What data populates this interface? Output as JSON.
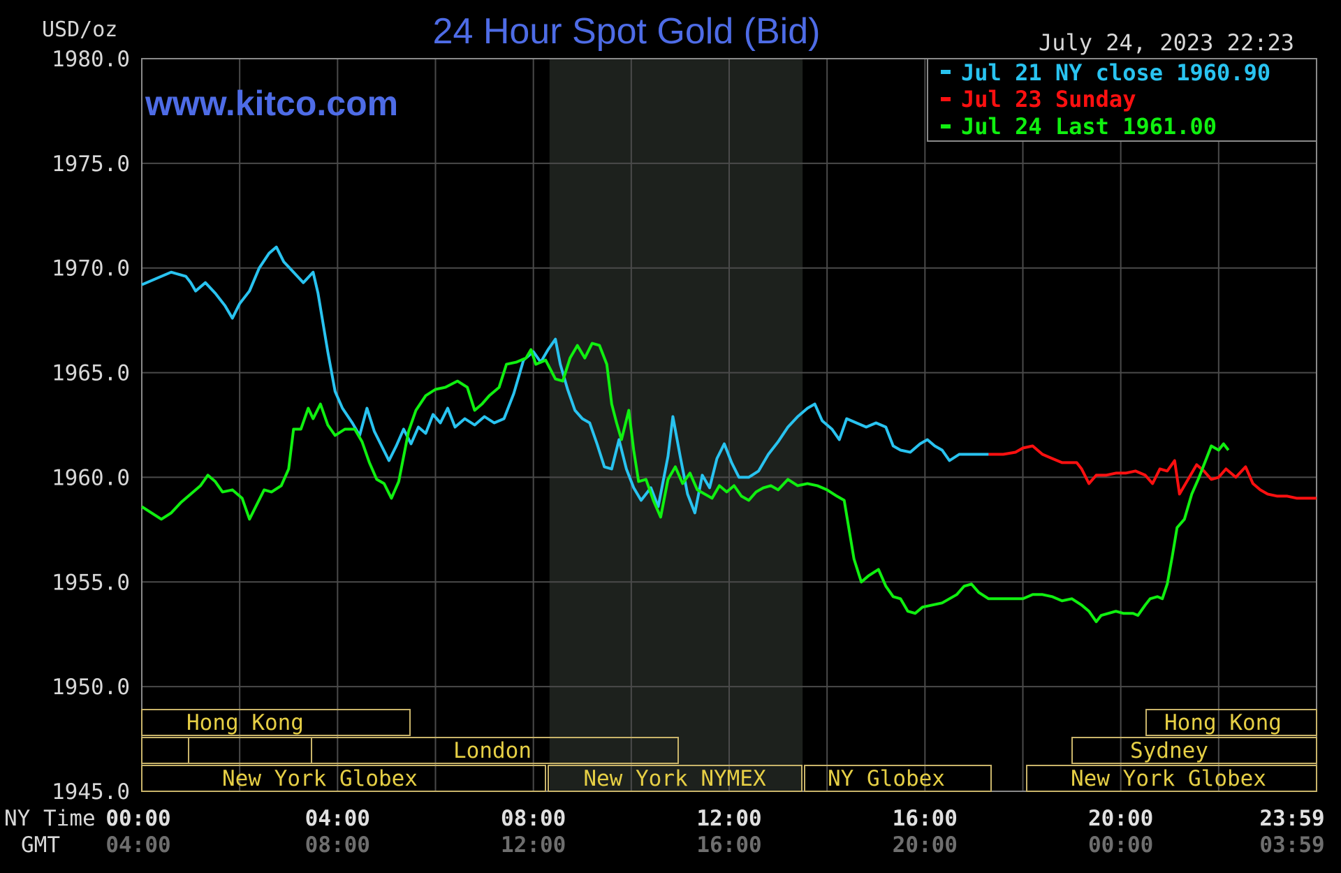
{
  "title": "24 Hour Spot Gold (Bid)",
  "units": "USD/oz",
  "timestamp": "July 24, 2023 22:23",
  "watermark": "www.kitco.com",
  "legend": [
    {
      "label": "Jul 21 NY close 1960.90",
      "color": "#29c3f0"
    },
    {
      "label": "Jul 23 Sunday",
      "color": "#ff1010"
    },
    {
      "label": "Jul 24 Last 1961.00",
      "color": "#10f010"
    }
  ],
  "x_axis": {
    "row1_label": "NY Time",
    "row2_label": "GMT",
    "ny_ticks": [
      "00:00",
      "04:00",
      "08:00",
      "12:00",
      "16:00",
      "20:00",
      "23:59"
    ],
    "gmt_ticks": [
      "04:00",
      "08:00",
      "12:00",
      "16:00",
      "20:00",
      "00:00",
      "03:59"
    ]
  },
  "sessions": {
    "hong_kong_1": "Hong Kong",
    "london": "London",
    "ny_globex_1": "New York Globex",
    "ny_nymex": "New York NYMEX",
    "ny_globex_2": "NY Globex",
    "hong_kong_2": "Hong Kong",
    "sydney": "Sydney",
    "ny_globex_3": "New York Globex"
  },
  "chart_data": {
    "type": "line",
    "title": "24 Hour Spot Gold (Bid)",
    "xlabel": "NY Time",
    "ylabel": "USD/oz",
    "x_unit": "hours (NY time)",
    "xlim": [
      0,
      24
    ],
    "ylim": [
      1945,
      1980
    ],
    "yticks": [
      "1980.0",
      "1975.0",
      "1970.0",
      "1965.0",
      "1960.0",
      "1955.0",
      "1950.0",
      "1945.0"
    ],
    "grid": true,
    "legend_position": "top-right",
    "series": [
      {
        "name": "Jul 21 NY close 1960.90",
        "color": "#29c3f0",
        "points": [
          [
            0,
            1969.2
          ],
          [
            0.3,
            1969.5
          ],
          [
            0.6,
            1969.8
          ],
          [
            0.9,
            1969.6
          ],
          [
            1.0,
            1969.3
          ],
          [
            1.1,
            1968.9
          ],
          [
            1.3,
            1969.3
          ],
          [
            1.5,
            1968.8
          ],
          [
            1.7,
            1968.2
          ],
          [
            1.85,
            1967.6
          ],
          [
            2.0,
            1968.3
          ],
          [
            2.2,
            1968.9
          ],
          [
            2.4,
            1970.0
          ],
          [
            2.6,
            1970.7
          ],
          [
            2.75,
            1971.0
          ],
          [
            2.9,
            1970.3
          ],
          [
            3.1,
            1969.8
          ],
          [
            3.3,
            1969.3
          ],
          [
            3.5,
            1969.8
          ],
          [
            3.6,
            1968.8
          ],
          [
            3.8,
            1966.0
          ],
          [
            3.95,
            1964.1
          ],
          [
            4.1,
            1963.3
          ],
          [
            4.3,
            1962.6
          ],
          [
            4.45,
            1962.0
          ],
          [
            4.6,
            1963.3
          ],
          [
            4.75,
            1962.2
          ],
          [
            4.9,
            1961.5
          ],
          [
            5.05,
            1960.8
          ],
          [
            5.2,
            1961.5
          ],
          [
            5.35,
            1962.3
          ],
          [
            5.5,
            1961.6
          ],
          [
            5.65,
            1962.4
          ],
          [
            5.8,
            1962.1
          ],
          [
            5.95,
            1963.0
          ],
          [
            6.1,
            1962.6
          ],
          [
            6.25,
            1963.3
          ],
          [
            6.4,
            1962.4
          ],
          [
            6.6,
            1962.8
          ],
          [
            6.8,
            1962.5
          ],
          [
            7.0,
            1962.9
          ],
          [
            7.2,
            1962.6
          ],
          [
            7.4,
            1962.8
          ],
          [
            7.6,
            1964.0
          ],
          [
            7.8,
            1965.6
          ],
          [
            8.0,
            1966.0
          ],
          [
            8.15,
            1965.5
          ],
          [
            8.3,
            1966.1
          ],
          [
            8.45,
            1966.6
          ],
          [
            8.55,
            1965.4
          ],
          [
            8.7,
            1964.2
          ],
          [
            8.85,
            1963.2
          ],
          [
            9.0,
            1962.8
          ],
          [
            9.15,
            1962.6
          ],
          [
            9.3,
            1961.6
          ],
          [
            9.45,
            1960.5
          ],
          [
            9.6,
            1960.4
          ],
          [
            9.75,
            1961.8
          ],
          [
            9.9,
            1960.4
          ],
          [
            10.05,
            1959.5
          ],
          [
            10.2,
            1958.9
          ],
          [
            10.4,
            1959.5
          ],
          [
            10.55,
            1958.6
          ],
          [
            10.75,
            1961.0
          ],
          [
            10.85,
            1962.9
          ],
          [
            11.0,
            1961.0
          ],
          [
            11.15,
            1959.2
          ],
          [
            11.3,
            1958.3
          ],
          [
            11.45,
            1960.1
          ],
          [
            11.6,
            1959.5
          ],
          [
            11.75,
            1960.9
          ],
          [
            11.9,
            1961.6
          ],
          [
            12.05,
            1960.7
          ],
          [
            12.2,
            1960.0
          ],
          [
            12.4,
            1960.0
          ],
          [
            12.6,
            1960.3
          ],
          [
            12.8,
            1961.1
          ],
          [
            13.0,
            1961.7
          ],
          [
            13.2,
            1962.4
          ],
          [
            13.4,
            1962.9
          ],
          [
            13.6,
            1963.3
          ],
          [
            13.75,
            1963.5
          ],
          [
            13.9,
            1962.7
          ],
          [
            14.1,
            1962.3
          ],
          [
            14.25,
            1961.8
          ],
          [
            14.4,
            1962.8
          ],
          [
            14.6,
            1962.6
          ],
          [
            14.8,
            1962.4
          ],
          [
            15.0,
            1962.6
          ],
          [
            15.2,
            1962.4
          ],
          [
            15.35,
            1961.5
          ],
          [
            15.5,
            1961.3
          ],
          [
            15.7,
            1961.2
          ],
          [
            15.9,
            1961.6
          ],
          [
            16.05,
            1961.8
          ],
          [
            16.2,
            1961.5
          ],
          [
            16.35,
            1961.3
          ],
          [
            16.5,
            1960.8
          ],
          [
            16.7,
            1961.1
          ],
          [
            17.0,
            1961.1
          ],
          [
            17.3,
            1961.1
          ]
        ]
      },
      {
        "name": "Jul 23 Sunday",
        "color": "#ff1010",
        "points": [
          [
            17.3,
            1961.1
          ],
          [
            17.6,
            1961.1
          ],
          [
            17.85,
            1961.2
          ],
          [
            18.0,
            1961.4
          ],
          [
            18.2,
            1961.5
          ],
          [
            18.4,
            1961.1
          ],
          [
            18.6,
            1960.9
          ],
          [
            18.8,
            1960.7
          ],
          [
            19.1,
            1960.7
          ],
          [
            19.2,
            1960.4
          ],
          [
            19.35,
            1959.7
          ],
          [
            19.5,
            1960.1
          ],
          [
            19.7,
            1960.1
          ],
          [
            19.9,
            1960.2
          ],
          [
            20.1,
            1960.2
          ],
          [
            20.3,
            1960.3
          ],
          [
            20.5,
            1960.1
          ],
          [
            20.65,
            1959.7
          ],
          [
            20.8,
            1960.4
          ],
          [
            20.95,
            1960.3
          ],
          [
            21.1,
            1960.8
          ],
          [
            21.2,
            1959.2
          ],
          [
            21.35,
            1959.8
          ],
          [
            21.55,
            1960.6
          ],
          [
            21.7,
            1960.3
          ],
          [
            21.85,
            1959.9
          ],
          [
            22.0,
            1960.0
          ],
          [
            22.15,
            1960.4
          ],
          [
            22.35,
            1960.0
          ],
          [
            22.55,
            1960.5
          ],
          [
            22.7,
            1959.7
          ],
          [
            22.85,
            1959.4
          ],
          [
            23.0,
            1959.2
          ],
          [
            23.2,
            1959.1
          ],
          [
            23.4,
            1959.1
          ],
          [
            23.6,
            1959.0
          ],
          [
            24.0,
            1959.0
          ]
        ]
      },
      {
        "name": "Jul 24 Last 1961.00",
        "color": "#10f010",
        "points": [
          [
            0,
            1958.6
          ],
          [
            0.2,
            1958.3
          ],
          [
            0.4,
            1958.0
          ],
          [
            0.6,
            1958.3
          ],
          [
            0.8,
            1958.8
          ],
          [
            1.0,
            1959.2
          ],
          [
            1.2,
            1959.6
          ],
          [
            1.35,
            1960.1
          ],
          [
            1.5,
            1959.8
          ],
          [
            1.65,
            1959.3
          ],
          [
            1.85,
            1959.4
          ],
          [
            2.05,
            1959.0
          ],
          [
            2.2,
            1958.0
          ],
          [
            2.35,
            1958.7
          ],
          [
            2.5,
            1959.4
          ],
          [
            2.65,
            1959.3
          ],
          [
            2.85,
            1959.6
          ],
          [
            3.0,
            1960.4
          ],
          [
            3.1,
            1962.3
          ],
          [
            3.25,
            1962.3
          ],
          [
            3.4,
            1963.3
          ],
          [
            3.5,
            1962.8
          ],
          [
            3.65,
            1963.5
          ],
          [
            3.8,
            1962.5
          ],
          [
            3.95,
            1962.0
          ],
          [
            4.15,
            1962.3
          ],
          [
            4.35,
            1962.3
          ],
          [
            4.5,
            1961.7
          ],
          [
            4.65,
            1960.7
          ],
          [
            4.8,
            1959.9
          ],
          [
            4.95,
            1959.7
          ],
          [
            5.1,
            1959.0
          ],
          [
            5.25,
            1959.8
          ],
          [
            5.45,
            1962.2
          ],
          [
            5.6,
            1963.2
          ],
          [
            5.8,
            1963.9
          ],
          [
            6.0,
            1964.2
          ],
          [
            6.2,
            1964.3
          ],
          [
            6.45,
            1964.6
          ],
          [
            6.65,
            1964.3
          ],
          [
            6.8,
            1963.2
          ],
          [
            6.95,
            1963.5
          ],
          [
            7.1,
            1963.9
          ],
          [
            7.3,
            1964.3
          ],
          [
            7.45,
            1965.4
          ],
          [
            7.65,
            1965.5
          ],
          [
            7.85,
            1965.7
          ],
          [
            7.95,
            1966.1
          ],
          [
            8.05,
            1965.4
          ],
          [
            8.25,
            1965.6
          ],
          [
            8.45,
            1964.7
          ],
          [
            8.6,
            1964.6
          ],
          [
            8.75,
            1965.7
          ],
          [
            8.9,
            1966.3
          ],
          [
            9.05,
            1965.7
          ],
          [
            9.2,
            1966.4
          ],
          [
            9.35,
            1966.3
          ],
          [
            9.5,
            1965.4
          ],
          [
            9.6,
            1963.5
          ],
          [
            9.7,
            1962.6
          ],
          [
            9.8,
            1961.8
          ],
          [
            9.95,
            1963.2
          ],
          [
            10.05,
            1961.3
          ],
          [
            10.15,
            1959.8
          ],
          [
            10.3,
            1959.9
          ],
          [
            10.45,
            1958.9
          ],
          [
            10.6,
            1958.1
          ],
          [
            10.75,
            1959.9
          ],
          [
            10.9,
            1960.5
          ],
          [
            11.05,
            1959.7
          ],
          [
            11.2,
            1960.2
          ],
          [
            11.35,
            1959.4
          ],
          [
            11.5,
            1959.2
          ],
          [
            11.65,
            1959.0
          ],
          [
            11.8,
            1959.6
          ],
          [
            11.95,
            1959.3
          ],
          [
            12.1,
            1959.6
          ],
          [
            12.25,
            1959.1
          ],
          [
            12.4,
            1958.9
          ],
          [
            12.55,
            1959.3
          ],
          [
            12.7,
            1959.5
          ],
          [
            12.85,
            1959.6
          ],
          [
            13.0,
            1959.4
          ],
          [
            13.2,
            1959.9
          ],
          [
            13.4,
            1959.6
          ],
          [
            13.6,
            1959.7
          ],
          [
            13.8,
            1959.6
          ],
          [
            14.0,
            1959.4
          ],
          [
            14.2,
            1959.1
          ],
          [
            14.35,
            1958.9
          ],
          [
            14.45,
            1957.5
          ],
          [
            14.55,
            1956.1
          ],
          [
            14.7,
            1955.0
          ],
          [
            14.85,
            1955.3
          ],
          [
            15.05,
            1955.6
          ],
          [
            15.2,
            1954.8
          ],
          [
            15.35,
            1954.3
          ],
          [
            15.5,
            1954.2
          ],
          [
            15.65,
            1953.6
          ],
          [
            15.8,
            1953.5
          ],
          [
            15.95,
            1953.8
          ],
          [
            16.15,
            1953.9
          ],
          [
            16.35,
            1954.0
          ],
          [
            16.5,
            1954.2
          ],
          [
            16.65,
            1954.4
          ],
          [
            16.8,
            1954.8
          ],
          [
            16.95,
            1954.9
          ],
          [
            17.1,
            1954.5
          ],
          [
            17.3,
            1954.2
          ],
          [
            17.6,
            1954.2
          ],
          [
            18.0,
            1954.2
          ],
          [
            18.2,
            1954.4
          ],
          [
            18.4,
            1954.4
          ],
          [
            18.6,
            1954.3
          ],
          [
            18.8,
            1954.1
          ],
          [
            19.0,
            1954.2
          ],
          [
            19.2,
            1953.9
          ],
          [
            19.35,
            1953.6
          ],
          [
            19.5,
            1953.1
          ],
          [
            19.6,
            1953.4
          ],
          [
            19.75,
            1953.5
          ],
          [
            19.9,
            1953.6
          ],
          [
            20.05,
            1953.5
          ],
          [
            20.25,
            1953.5
          ],
          [
            20.35,
            1953.4
          ],
          [
            20.5,
            1953.9
          ],
          [
            20.6,
            1954.2
          ],
          [
            20.75,
            1954.3
          ],
          [
            20.85,
            1954.2
          ],
          [
            20.95,
            1954.9
          ],
          [
            21.05,
            1956.2
          ],
          [
            21.15,
            1957.6
          ],
          [
            21.3,
            1958.0
          ],
          [
            21.45,
            1959.2
          ],
          [
            21.6,
            1960.0
          ],
          [
            21.75,
            1960.9
          ],
          [
            21.85,
            1961.5
          ],
          [
            22.0,
            1961.3
          ],
          [
            22.1,
            1961.6
          ],
          [
            22.2,
            1961.3
          ]
        ]
      }
    ]
  }
}
